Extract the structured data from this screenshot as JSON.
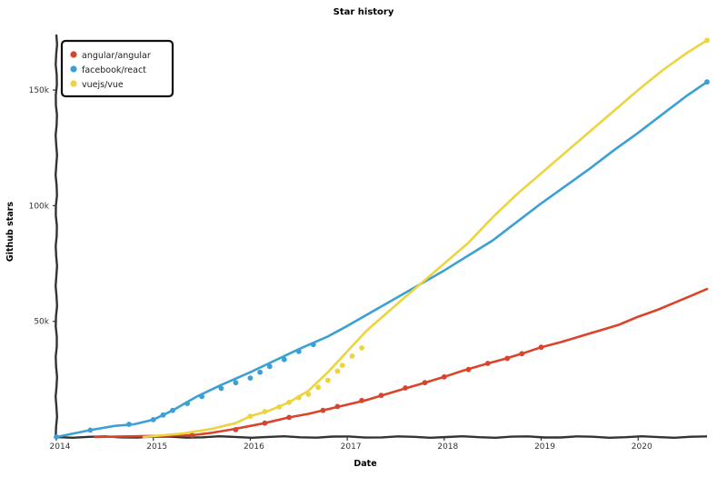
{
  "chart_data": {
    "type": "line",
    "title": "Star history",
    "xlabel": "Date",
    "ylabel": "Github stars",
    "xlim": [
      2014.0,
      2020.71
    ],
    "ylim": [
      0,
      174000
    ],
    "x_ticks": [
      {
        "value": 2014,
        "label": "2014"
      },
      {
        "value": 2015,
        "label": "2015"
      },
      {
        "value": 2016,
        "label": "2016"
      },
      {
        "value": 2017,
        "label": "2017"
      },
      {
        "value": 2018,
        "label": "2018"
      },
      {
        "value": 2019,
        "label": "2019"
      },
      {
        "value": 2020,
        "label": "2020"
      }
    ],
    "y_ticks": [
      {
        "value": 50000,
        "label": "50k"
      },
      {
        "value": 100000,
        "label": "100k"
      },
      {
        "value": 150000,
        "label": "150k"
      }
    ],
    "legend_position": "top-left",
    "series": [
      {
        "name": "angular/angular",
        "color": "#d9442a",
        "points": [
          [
            2014.4,
            0
          ],
          [
            2015.4,
            800
          ],
          [
            2015.6,
            1800
          ],
          [
            2015.8,
            3200
          ],
          [
            2016.0,
            4800
          ],
          [
            2016.15,
            6000
          ],
          [
            2016.4,
            8500
          ],
          [
            2016.6,
            10000
          ],
          [
            2016.8,
            12000
          ],
          [
            2017.0,
            14000
          ],
          [
            2017.2,
            16000
          ],
          [
            2017.4,
            18500
          ],
          [
            2017.6,
            21000
          ],
          [
            2017.8,
            23500
          ],
          [
            2018.0,
            26000
          ],
          [
            2018.2,
            28800
          ],
          [
            2018.45,
            31800
          ],
          [
            2018.6,
            33500
          ],
          [
            2018.8,
            36000
          ],
          [
            2019.0,
            38800
          ],
          [
            2019.2,
            41000
          ],
          [
            2019.4,
            43500
          ],
          [
            2019.6,
            46000
          ],
          [
            2019.8,
            48500
          ],
          [
            2020.0,
            52000
          ],
          [
            2020.2,
            55000
          ],
          [
            2020.4,
            58500
          ],
          [
            2020.6,
            62000
          ],
          [
            2020.71,
            64000
          ]
        ],
        "markers": [
          [
            2015.4,
            800
          ],
          [
            2015.85,
            3200
          ],
          [
            2016.15,
            6000
          ],
          [
            2016.4,
            8500
          ],
          [
            2016.75,
            11500
          ],
          [
            2016.9,
            13200
          ],
          [
            2017.15,
            15800
          ],
          [
            2017.35,
            18000
          ],
          [
            2017.6,
            21200
          ],
          [
            2017.8,
            23500
          ],
          [
            2018.0,
            26000
          ],
          [
            2018.25,
            29200
          ],
          [
            2018.45,
            31800
          ],
          [
            2018.65,
            34000
          ],
          [
            2018.8,
            36000
          ],
          [
            2019.0,
            38800
          ]
        ]
      },
      {
        "name": "facebook/react",
        "color": "#3aa0d5",
        "points": [
          [
            2014.0,
            0
          ],
          [
            2014.35,
            3000
          ],
          [
            2014.6,
            4800
          ],
          [
            2014.8,
            5500
          ],
          [
            2015.0,
            7500
          ],
          [
            2015.2,
            11500
          ],
          [
            2015.45,
            17500
          ],
          [
            2015.7,
            22500
          ],
          [
            2016.0,
            28000
          ],
          [
            2016.2,
            32000
          ],
          [
            2016.5,
            38000
          ],
          [
            2016.8,
            43500
          ],
          [
            2017.0,
            48000
          ],
          [
            2017.25,
            54000
          ],
          [
            2017.5,
            60000
          ],
          [
            2017.75,
            66000
          ],
          [
            2018.0,
            72000
          ],
          [
            2018.25,
            78500
          ],
          [
            2018.5,
            85000
          ],
          [
            2018.75,
            93000
          ],
          [
            2019.0,
            101000
          ],
          [
            2019.25,
            108500
          ],
          [
            2019.5,
            116000
          ],
          [
            2019.75,
            124000
          ],
          [
            2020.0,
            131500
          ],
          [
            2020.25,
            139500
          ],
          [
            2020.5,
            147500
          ],
          [
            2020.71,
            153500
          ]
        ],
        "markers": [
          [
            2014.0,
            0
          ],
          [
            2014.35,
            3000
          ],
          [
            2014.75,
            5500
          ],
          [
            2015.0,
            7500
          ],
          [
            2015.1,
            9500
          ],
          [
            2015.2,
            11500
          ],
          [
            2015.35,
            14500
          ],
          [
            2015.5,
            17500
          ],
          [
            2015.7,
            21000
          ],
          [
            2015.85,
            23500
          ],
          [
            2016.0,
            25500
          ],
          [
            2016.1,
            28000
          ],
          [
            2016.2,
            30500
          ],
          [
            2016.35,
            33500
          ],
          [
            2016.5,
            37000
          ],
          [
            2016.65,
            40000
          ],
          [
            2020.71,
            153500
          ]
        ]
      },
      {
        "name": "vuejs/vue",
        "color": "#ecd43f",
        "points": [
          [
            2014.9,
            0
          ],
          [
            2015.3,
            1500
          ],
          [
            2015.6,
            3500
          ],
          [
            2015.85,
            6000
          ],
          [
            2016.0,
            9000
          ],
          [
            2016.2,
            11500
          ],
          [
            2016.4,
            15000
          ],
          [
            2016.6,
            20000
          ],
          [
            2016.8,
            28000
          ],
          [
            2017.0,
            37000
          ],
          [
            2017.2,
            46000
          ],
          [
            2017.5,
            57000
          ],
          [
            2017.75,
            66000
          ],
          [
            2018.0,
            75000
          ],
          [
            2018.25,
            84000
          ],
          [
            2018.5,
            95000
          ],
          [
            2018.75,
            105000
          ],
          [
            2019.0,
            114000
          ],
          [
            2019.25,
            123000
          ],
          [
            2019.5,
            132000
          ],
          [
            2019.75,
            141000
          ],
          [
            2020.0,
            150000
          ],
          [
            2020.25,
            158500
          ],
          [
            2020.5,
            166000
          ],
          [
            2020.71,
            171500
          ]
        ],
        "markers": [
          [
            2016.0,
            9000
          ],
          [
            2016.15,
            11000
          ],
          [
            2016.3,
            13000
          ],
          [
            2016.4,
            15000
          ],
          [
            2016.5,
            17000
          ],
          [
            2016.6,
            18500
          ],
          [
            2016.7,
            21500
          ],
          [
            2016.8,
            24500
          ],
          [
            2016.9,
            28500
          ],
          [
            2016.95,
            31000
          ],
          [
            2017.05,
            35000
          ],
          [
            2017.15,
            38500
          ],
          [
            2020.71,
            171500
          ]
        ]
      }
    ]
  }
}
